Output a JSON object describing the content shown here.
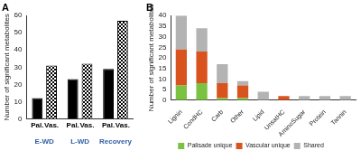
{
  "chart_data": [
    {
      "type": "bar",
      "title": "A",
      "categories": [
        "E-WD",
        "L-WD",
        "Recovery"
      ],
      "series": [
        {
          "name": "Pal.",
          "color": "#000000",
          "values": [
            12,
            23,
            29
          ]
        },
        {
          "name": "Vas.",
          "color": "#000000",
          "values": [
            31,
            32,
            57
          ]
        }
      ],
      "y_label": "Number of significant metabolites",
      "ylim": [
        0,
        60
      ],
      "yticks": [
        0,
        10,
        20,
        30,
        40,
        50,
        60
      ],
      "grid": false
    },
    {
      "type": "bar",
      "title": "B",
      "stacked": true,
      "legend": "bottom",
      "categories": [
        "Lignin",
        "CondHC",
        "Carb",
        "Other",
        "Lipid",
        "UnsatHC",
        "AminoSugar",
        "Protein",
        "Tannin"
      ],
      "series": [
        {
          "name": "Palisade unique",
          "color": "#7cc242",
          "values": [
            7,
            8,
            1,
            1,
            0,
            0,
            0,
            0,
            0
          ]
        },
        {
          "name": "Vascular unique",
          "color": "#d9531e",
          "values": [
            17,
            15,
            7,
            6,
            0,
            2,
            0,
            0,
            0
          ]
        },
        {
          "name": "Shared",
          "color": "#b3b3b3",
          "values": [
            16,
            11,
            9,
            2,
            4,
            0,
            2,
            2,
            2
          ]
        }
      ],
      "y_label": "Number of significant metabolites",
      "ylim": [
        0,
        40
      ],
      "yticks": [
        0,
        5,
        10,
        15,
        20,
        25,
        30,
        35,
        40
      ],
      "grid": false
    }
  ]
}
